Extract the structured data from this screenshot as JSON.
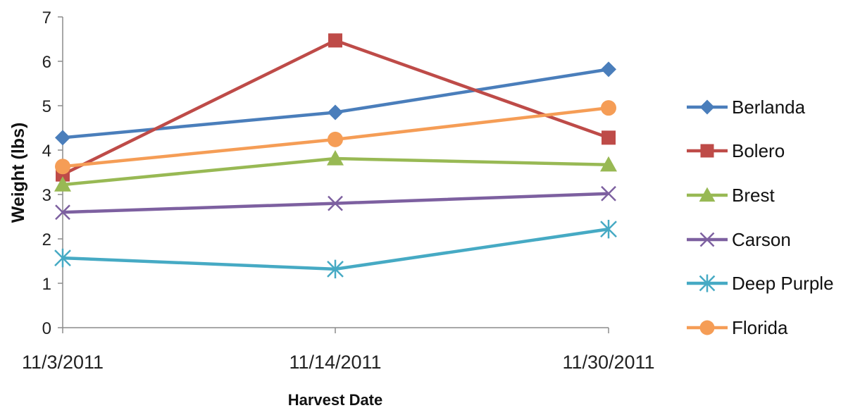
{
  "chart_data": {
    "type": "line",
    "xlabel": "Harvest Date",
    "ylabel": "Weight (lbs)",
    "ylim": [
      0,
      7
    ],
    "yticks": [
      "0",
      "1",
      "2",
      "3",
      "4",
      "5",
      "6",
      "7"
    ],
    "categories": [
      "11/3/2011",
      "11/14/2011",
      "11/30/2011"
    ],
    "grid": false,
    "legend": "right",
    "series": [
      {
        "name": "Berlanda",
        "values": [
          4.28,
          4.85,
          5.82
        ],
        "color": "#4a7ebb",
        "marker": "diamond"
      },
      {
        "name": "Bolero",
        "values": [
          3.45,
          6.47,
          4.28
        ],
        "color": "#be4b48",
        "marker": "square"
      },
      {
        "name": "Brest",
        "values": [
          3.22,
          3.81,
          3.67
        ],
        "color": "#98b954",
        "marker": "triangle"
      },
      {
        "name": "Carson",
        "values": [
          2.6,
          2.8,
          3.02
        ],
        "color": "#7d60a0",
        "marker": "x"
      },
      {
        "name": "Deep Purple",
        "values": [
          1.57,
          1.32,
          2.22
        ],
        "color": "#46aac4",
        "marker": "asterisk"
      },
      {
        "name": "Florida",
        "values": [
          3.63,
          4.24,
          4.95
        ],
        "color": "#f59d56",
        "marker": "circle"
      }
    ]
  }
}
